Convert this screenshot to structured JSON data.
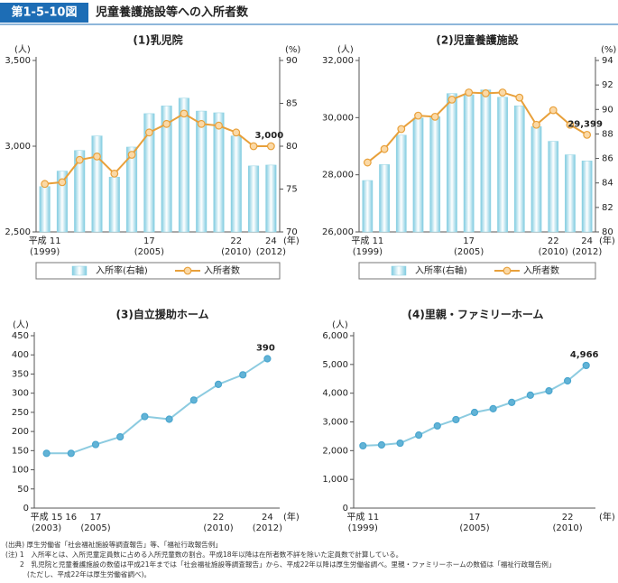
{
  "header": {
    "figure_number": "第1-5-10図",
    "title": "児童養護施設等への入所者数"
  },
  "chart_data": [
    {
      "type": "combo",
      "title": "(1)乳児院",
      "y_label": "(人)",
      "y2_label": "(%)",
      "x_label": "(年)",
      "legend": true,
      "categories": [
        {
          "era": "平成 11",
          "year": "(1999)"
        },
        null,
        null,
        null,
        null,
        null,
        {
          "era": "17",
          "year": "(2005)"
        },
        null,
        null,
        null,
        null,
        {
          "era": "22",
          "year": "(2010)"
        },
        null,
        {
          "era": "24",
          "year": "(2012)"
        }
      ],
      "ylim": [
        2500,
        3500
      ],
      "yticks": [
        {
          "value": 2500,
          "label": "2,500"
        },
        {
          "value": 3000,
          "label": "3,000"
        },
        {
          "value": 3500,
          "label": "3,500"
        }
      ],
      "y2lim": [
        70,
        90
      ],
      "y2ticks": [
        70,
        75,
        80,
        85,
        90
      ],
      "series": [
        {
          "name": "入所率(右軸)",
          "type": "bar",
          "axis": "y2",
          "color": "#8fd3e3",
          "values": [
            75.3,
            77.1,
            79.5,
            81.2,
            76.4,
            79.9,
            83.8,
            84.7,
            85.6,
            84.1,
            83.9,
            81.2,
            77.7,
            77.8
          ]
        },
        {
          "name": "入所者数",
          "type": "line",
          "color": "#e8a03a",
          "values": [
            2780,
            2790,
            2920,
            2940,
            2840,
            2950,
            3080,
            3130,
            3190,
            3130,
            3120,
            3080,
            3000,
            3000
          ],
          "value_labels": [
            null,
            null,
            null,
            null,
            null,
            null,
            null,
            null,
            null,
            null,
            null,
            null,
            null,
            "3,000"
          ]
        }
      ]
    },
    {
      "type": "combo",
      "title": "(2)児童養護施設",
      "y_label": "(人)",
      "y2_label": "(%)",
      "x_label": "(年)",
      "legend": true,
      "categories": [
        {
          "era": "平成 11",
          "year": "(1999)"
        },
        null,
        null,
        null,
        null,
        null,
        {
          "era": "17",
          "year": "(2005)"
        },
        null,
        null,
        null,
        null,
        {
          "era": "22",
          "year": "(2010)"
        },
        null,
        {
          "era": "24",
          "year": "(2012)"
        }
      ],
      "ylim": [
        26000,
        32000
      ],
      "yticks": [
        {
          "value": 26000,
          "label": "26,000"
        },
        {
          "value": 28000,
          "label": "28,000"
        },
        {
          "value": 30000,
          "label": "30,000"
        },
        {
          "value": 32000,
          "label": "32,000"
        }
      ],
      "y2lim": [
        80,
        94
      ],
      "y2ticks": [
        80,
        82,
        84,
        86,
        88,
        90,
        92,
        94
      ],
      "series": [
        {
          "name": "入所率(右軸)",
          "type": "bar",
          "axis": "y2",
          "color": "#8fd3e3",
          "values": [
            84.2,
            85.5,
            87.9,
            89.3,
            89.4,
            91.3,
            91.2,
            91.6,
            91.0,
            90.3,
            88.6,
            87.4,
            86.3,
            85.8
          ]
        },
        {
          "name": "入所者数",
          "type": "line",
          "color": "#e8a03a",
          "values": [
            28430,
            28900,
            29600,
            30070,
            30030,
            30630,
            30880,
            30850,
            30880,
            30700,
            29750,
            30260,
            29750,
            29399
          ],
          "value_labels": [
            null,
            null,
            null,
            null,
            null,
            null,
            null,
            null,
            null,
            null,
            null,
            null,
            null,
            "29,399"
          ]
        }
      ]
    },
    {
      "type": "line",
      "title": "(3)自立援助ホーム",
      "y_label": "(人)",
      "x_label": "(年)",
      "categories": [
        {
          "era": "平成 15",
          "year": "(2003)"
        },
        {
          "era": "16"
        },
        {
          "era": "17",
          "year": "(2005)"
        },
        null,
        null,
        null,
        null,
        {
          "era": "22",
          "year": "(2010)"
        },
        null,
        {
          "era": "24",
          "year": "(2012)"
        }
      ],
      "ylim": [
        0,
        450
      ],
      "yticks": [
        0,
        50,
        100,
        150,
        200,
        250,
        300,
        350,
        400,
        450
      ],
      "series": [
        {
          "type": "line",
          "color": "#8ccbe0",
          "values": [
            143,
            143,
            166,
            186,
            239,
            232,
            282,
            323,
            348,
            390
          ],
          "value_labels": [
            null,
            null,
            null,
            null,
            null,
            null,
            null,
            null,
            null,
            "390"
          ]
        }
      ]
    },
    {
      "type": "line",
      "title": "(4)里親・ファミリーホーム",
      "y_label": "(人)",
      "x_label": "(年)",
      "categories": [
        {
          "era": "平成 11",
          "year": "(1999)"
        },
        null,
        null,
        null,
        null,
        null,
        {
          "era": "17",
          "year": "(2005)"
        },
        null,
        null,
        null,
        null,
        {
          "era": "22",
          "year": "(2010)"
        },
        null
      ],
      "ylim": [
        0,
        6000
      ],
      "yticks": [
        0,
        {
          "value": 1000,
          "label": "1,000"
        },
        {
          "value": 2000,
          "label": "2,000"
        },
        {
          "value": 3000,
          "label": "3,000"
        },
        {
          "value": 4000,
          "label": "4,000"
        },
        {
          "value": 5000,
          "label": "5,000"
        },
        {
          "value": 6000,
          "label": "6,000"
        }
      ],
      "series": [
        {
          "type": "line",
          "color": "#8ccbe0",
          "values": [
            2170,
            2200,
            2260,
            2540,
            2860,
            3080,
            3330,
            3460,
            3680,
            3930,
            4080,
            4430,
            4966
          ],
          "value_labels": [
            null,
            null,
            null,
            null,
            null,
            null,
            null,
            null,
            null,
            null,
            null,
            null,
            "4,966"
          ]
        }
      ]
    }
  ],
  "notes": [
    "(出典) 厚生労働省「社会福祉施設等調査報告」等、「福祉行政報告例」",
    "(注) 1　入所率とは、入所児童定員数に占める入所児童数の割合。平成18年以降は在所者数不詳を除いた定員数で計算している。",
    "2　乳児院と児童養護施設の数値は平成21年までは「社会福祉施設等調査報告」から、平成22年以降は厚生労働省調べ。里親・ファミリーホームの数値は「福祉行政報告例」",
    "(ただし、平成22年は厚生労働省調べ)。"
  ]
}
